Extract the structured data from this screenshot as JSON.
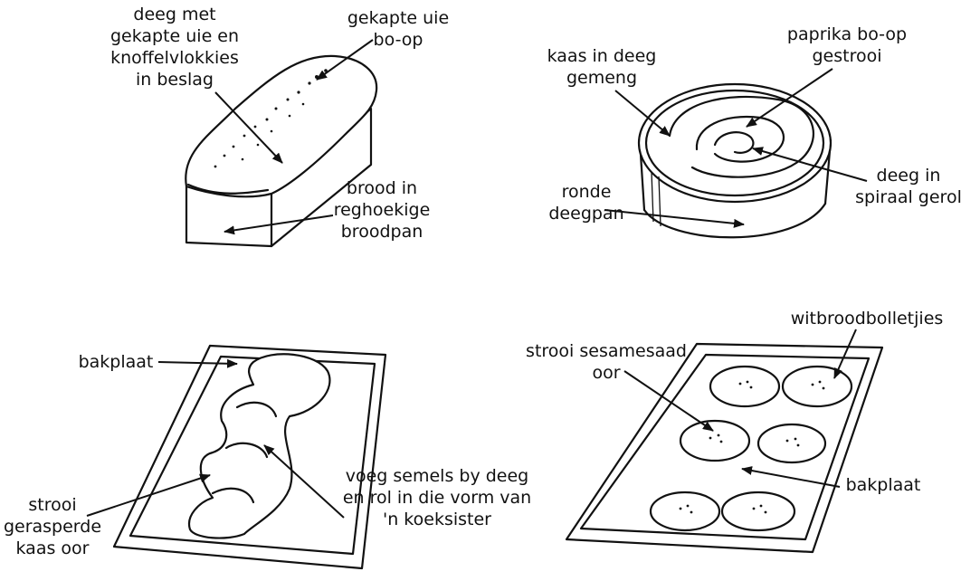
{
  "labels": {
    "loaf_dough": [
      "deeg met",
      "gekapte uie en",
      "knoffelvlokkies",
      "in beslag"
    ],
    "loaf_onion": [
      "gekapte uie",
      "bo-op"
    ],
    "loaf_pan": [
      "brood in",
      "reghoekige",
      "broodpan"
    ],
    "round_cheese": [
      "kaas in deeg",
      "gemeng"
    ],
    "round_paprika": [
      "paprika bo-op",
      "gestrooi"
    ],
    "round_spiral": [
      "deeg in",
      "spiraal gerol"
    ],
    "round_pan": [
      "ronde",
      "deegpan"
    ],
    "twist_tray": [
      "bakplaat"
    ],
    "twist_bran": [
      "voeg semels by deeg",
      "en rol in die vorm van",
      "'n koeksister"
    ],
    "twist_cheese": [
      "strooi",
      "gerasperde",
      "kaas oor"
    ],
    "rolls_rolls": [
      "witbroodbolletjies"
    ],
    "rolls_sesame": [
      "strooi sesamesaad",
      "oor"
    ],
    "rolls_tray": [
      "bakplaat"
    ]
  }
}
